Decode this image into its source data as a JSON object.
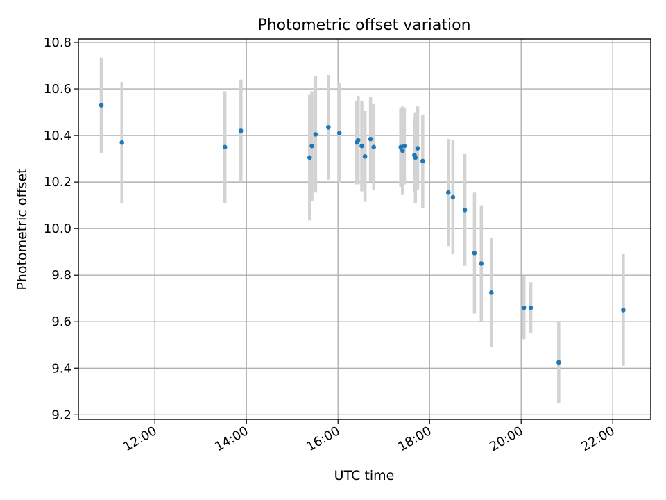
{
  "chart_data": {
    "type": "scatter",
    "title": "Photometric offset variation",
    "xlabel": "UTC time",
    "ylabel": "Photometric offset",
    "x_unit": "hours UTC",
    "xlim": [
      10.33,
      22.83
    ],
    "ylim": [
      9.18,
      10.815
    ],
    "x_ticks": [
      {
        "value": 12,
        "label": "12:00"
      },
      {
        "value": 14,
        "label": "14:00"
      },
      {
        "value": 16,
        "label": "16:00"
      },
      {
        "value": 18,
        "label": "18:00"
      },
      {
        "value": 20,
        "label": "20:00"
      },
      {
        "value": 22,
        "label": "22:00"
      }
    ],
    "y_ticks": [
      {
        "value": 9.2,
        "label": "9.2"
      },
      {
        "value": 9.4,
        "label": "9.4"
      },
      {
        "value": 9.6,
        "label": "9.6"
      },
      {
        "value": 9.8,
        "label": "9.8"
      },
      {
        "value": 10.0,
        "label": "10.0"
      },
      {
        "value": 10.2,
        "label": "10.2"
      },
      {
        "value": 10.4,
        "label": "10.4"
      },
      {
        "value": 10.6,
        "label": "10.6"
      },
      {
        "value": 10.8,
        "label": "10.8"
      }
    ],
    "grid": true,
    "marker_color": "#1f77b4",
    "errorbar_color": "#d3d3d3",
    "points": [
      {
        "x": 10.83,
        "y": 10.53,
        "err": 0.205
      },
      {
        "x": 11.28,
        "y": 10.37,
        "err": 0.26
      },
      {
        "x": 13.53,
        "y": 10.35,
        "err": 0.24
      },
      {
        "x": 13.88,
        "y": 10.42,
        "err": 0.22
      },
      {
        "x": 15.38,
        "y": 10.305,
        "err": 0.27
      },
      {
        "x": 15.43,
        "y": 10.355,
        "err": 0.235
      },
      {
        "x": 15.51,
        "y": 10.405,
        "err": 0.25
      },
      {
        "x": 15.79,
        "y": 10.435,
        "err": 0.225
      },
      {
        "x": 16.03,
        "y": 10.41,
        "err": 0.215
      },
      {
        "x": 16.41,
        "y": 10.37,
        "err": 0.18
      },
      {
        "x": 16.44,
        "y": 10.38,
        "err": 0.19
      },
      {
        "x": 16.52,
        "y": 10.355,
        "err": 0.195
      },
      {
        "x": 16.59,
        "y": 10.31,
        "err": 0.195
      },
      {
        "x": 16.71,
        "y": 10.385,
        "err": 0.18
      },
      {
        "x": 16.78,
        "y": 10.35,
        "err": 0.185
      },
      {
        "x": 17.37,
        "y": 10.35,
        "err": 0.17
      },
      {
        "x": 17.41,
        "y": 10.335,
        "err": 0.19
      },
      {
        "x": 17.45,
        "y": 10.355,
        "err": 0.165
      },
      {
        "x": 17.67,
        "y": 10.315,
        "err": 0.16
      },
      {
        "x": 17.69,
        "y": 10.305,
        "err": 0.195
      },
      {
        "x": 17.74,
        "y": 10.345,
        "err": 0.18
      },
      {
        "x": 17.85,
        "y": 10.29,
        "err": 0.2
      },
      {
        "x": 18.41,
        "y": 10.155,
        "err": 0.23
      },
      {
        "x": 18.51,
        "y": 10.135,
        "err": 0.245
      },
      {
        "x": 18.77,
        "y": 10.08,
        "err": 0.24
      },
      {
        "x": 18.98,
        "y": 9.895,
        "err": 0.26
      },
      {
        "x": 19.13,
        "y": 9.85,
        "err": 0.25
      },
      {
        "x": 19.35,
        "y": 9.725,
        "err": 0.235
      },
      {
        "x": 20.06,
        "y": 9.66,
        "err": 0.135
      },
      {
        "x": 20.21,
        "y": 9.66,
        "err": 0.11
      },
      {
        "x": 20.82,
        "y": 9.425,
        "err": 0.175
      },
      {
        "x": 22.23,
        "y": 9.65,
        "err": 0.24
      }
    ]
  }
}
